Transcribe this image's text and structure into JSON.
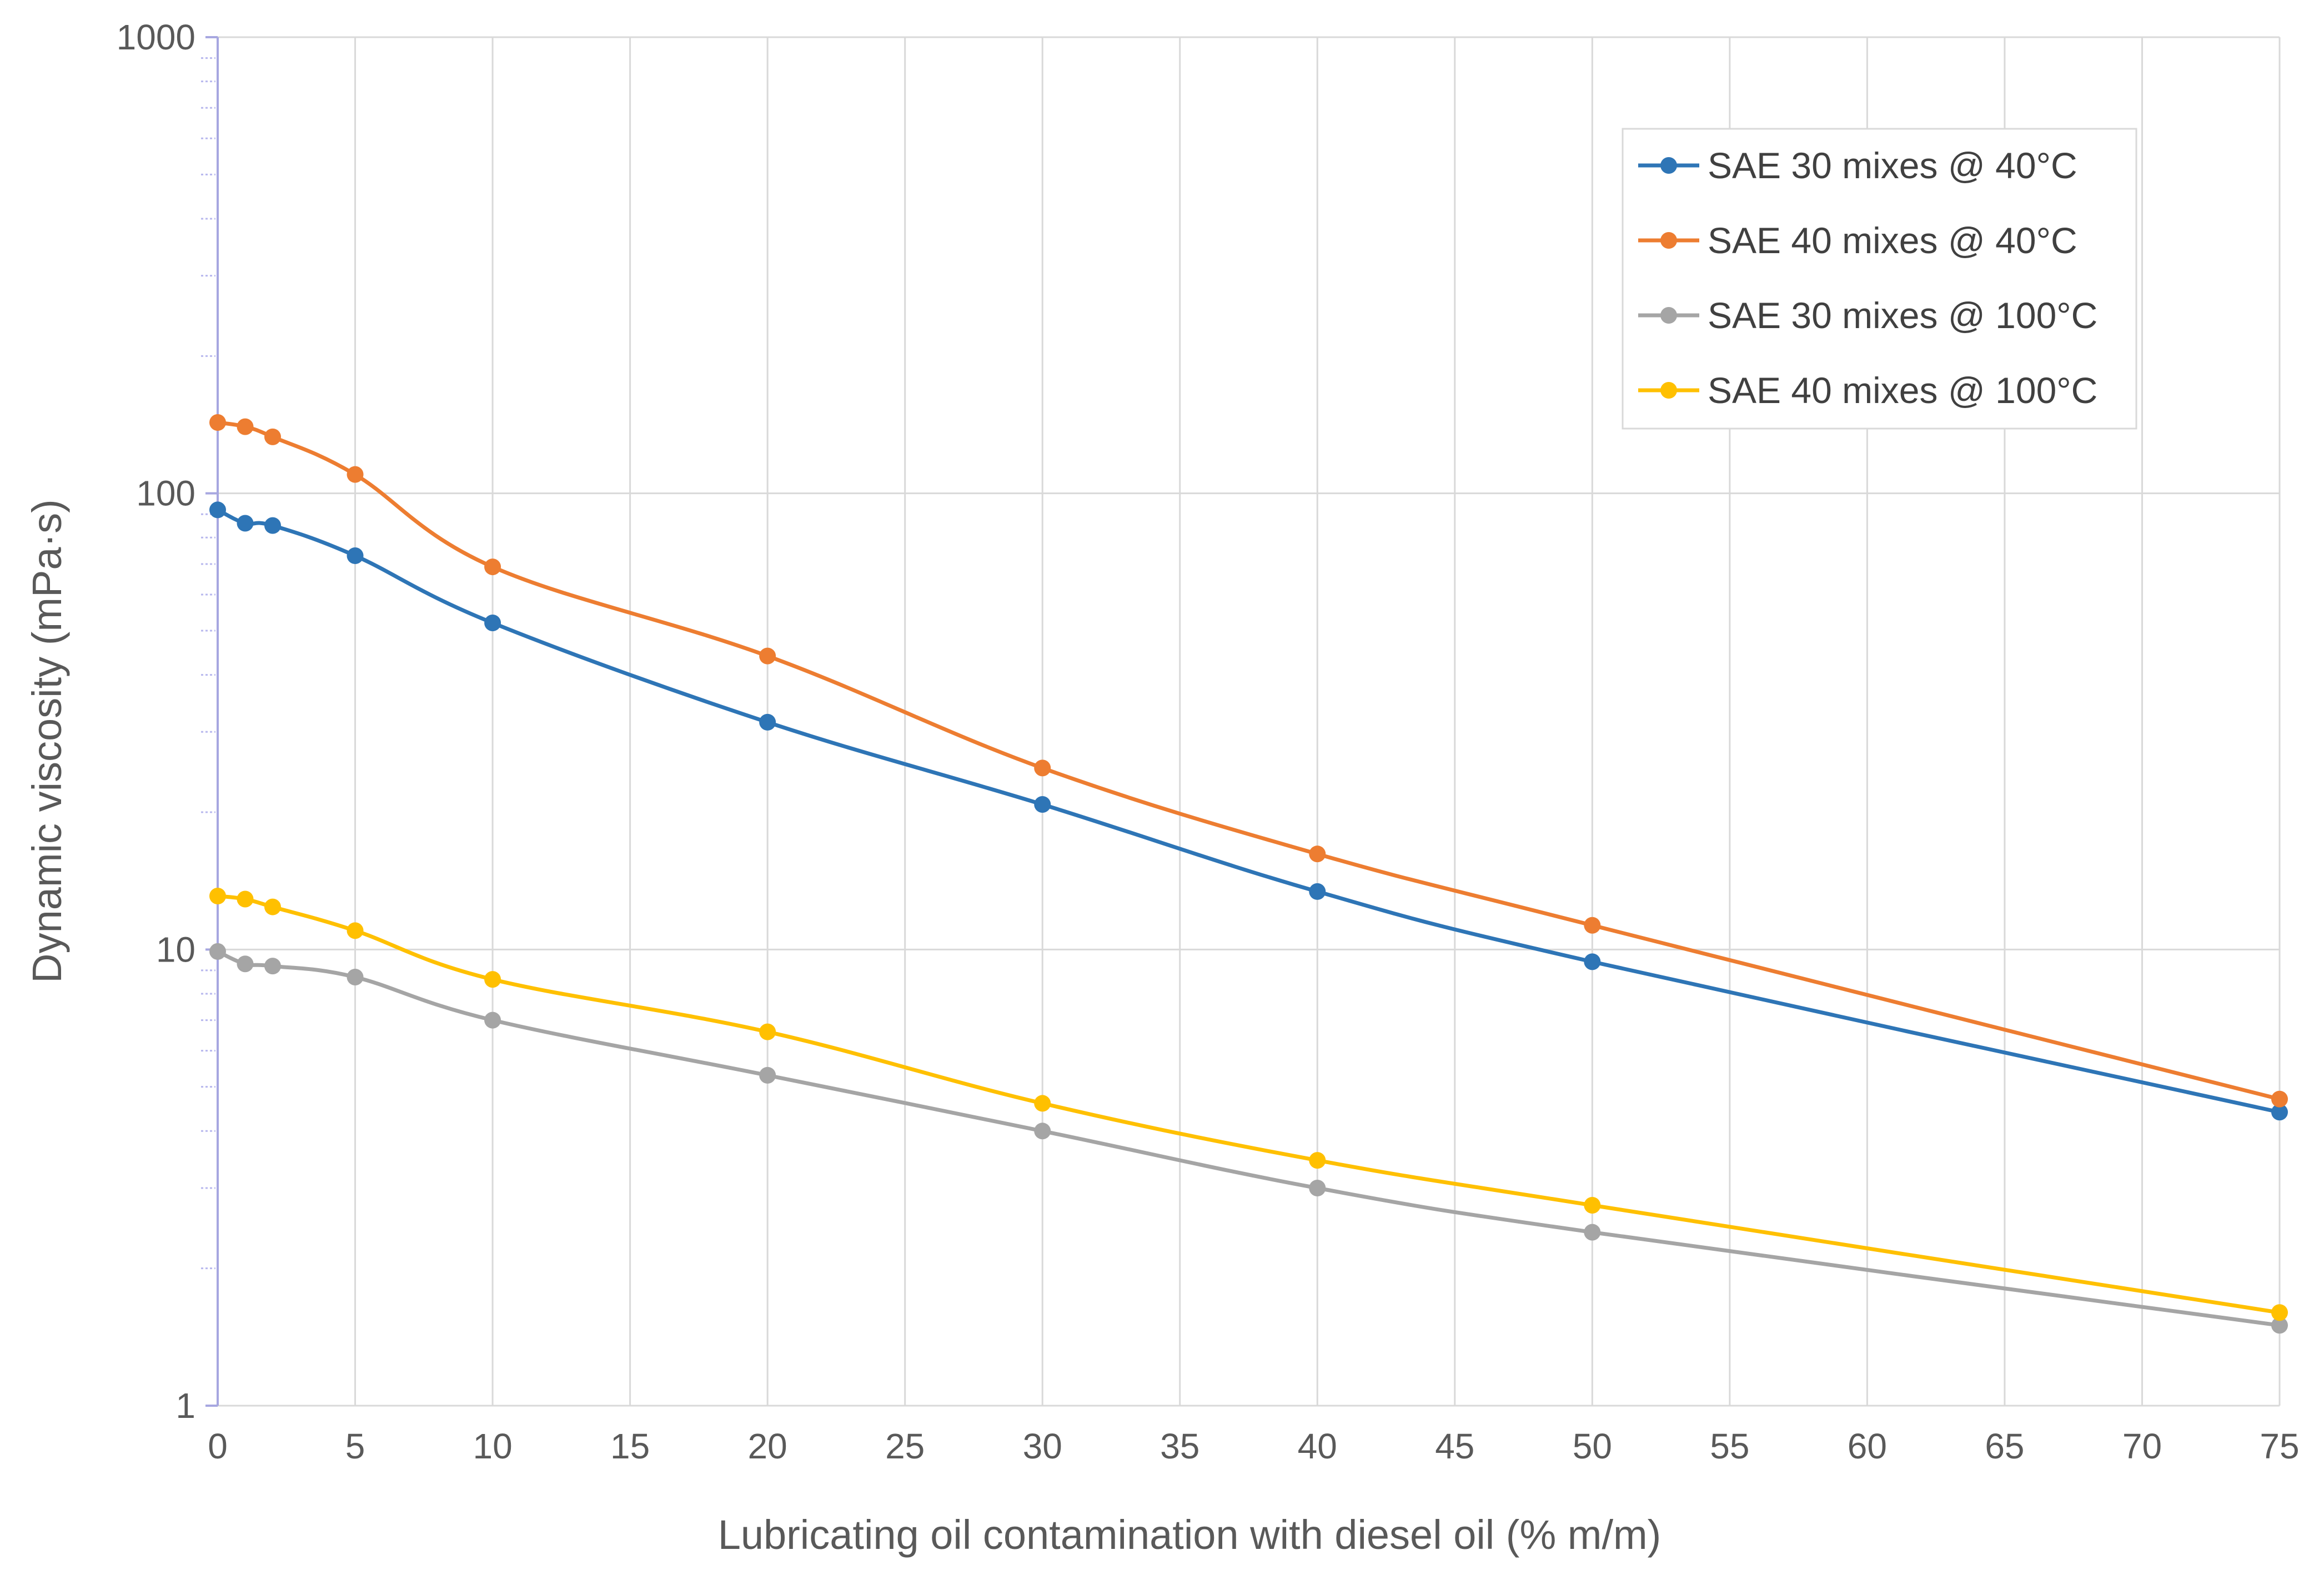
{
  "chart_data": {
    "type": "line",
    "title": "",
    "xlabel": "Lubricating oil contamination with diesel oil (% m/m)",
    "ylabel": "Dynamic viscosity (mPa·s)",
    "yscale": "log",
    "xlim": [
      0,
      75
    ],
    "ylim": [
      1,
      1000
    ],
    "x_ticks": [
      0,
      5,
      10,
      15,
      20,
      25,
      30,
      35,
      40,
      45,
      50,
      55,
      60,
      65,
      70,
      75
    ],
    "y_ticks": [
      1,
      10,
      100,
      1000
    ],
    "x_tick_labels": [
      "0",
      "5",
      "10",
      "15",
      "20",
      "25",
      "30",
      "35",
      "40",
      "45",
      "50",
      "55",
      "60",
      "65",
      "70",
      "75"
    ],
    "y_tick_labels": [
      "1",
      "10",
      "100",
      "1000"
    ],
    "grid": true,
    "legend_position": "top-right",
    "x": [
      0,
      1,
      2,
      5,
      10,
      20,
      30,
      40,
      50,
      75
    ],
    "series": [
      {
        "name": "SAE 30 mixes @ 40°C",
        "color": "#2e75b6",
        "values": [
          92,
          86,
          85,
          73,
          52,
          31.5,
          20.8,
          13.4,
          9.4,
          4.4
        ]
      },
      {
        "name": "SAE 40 mixes @ 40°C",
        "color": "#ed7d31",
        "values": [
          143,
          140,
          133,
          110,
          69,
          44,
          25,
          16.2,
          11.3,
          4.7
        ]
      },
      {
        "name": "SAE 30 mixes @ 100°C",
        "color": "#a5a5a5",
        "values": [
          9.9,
          9.3,
          9.2,
          8.7,
          7.0,
          5.3,
          4.0,
          3.0,
          2.4,
          1.5
        ]
      },
      {
        "name": "SAE 40 mixes @ 100°C",
        "color": "#ffc000",
        "values": [
          13.1,
          12.9,
          12.4,
          11.0,
          8.6,
          6.6,
          4.6,
          3.45,
          2.75,
          1.6
        ]
      }
    ]
  }
}
